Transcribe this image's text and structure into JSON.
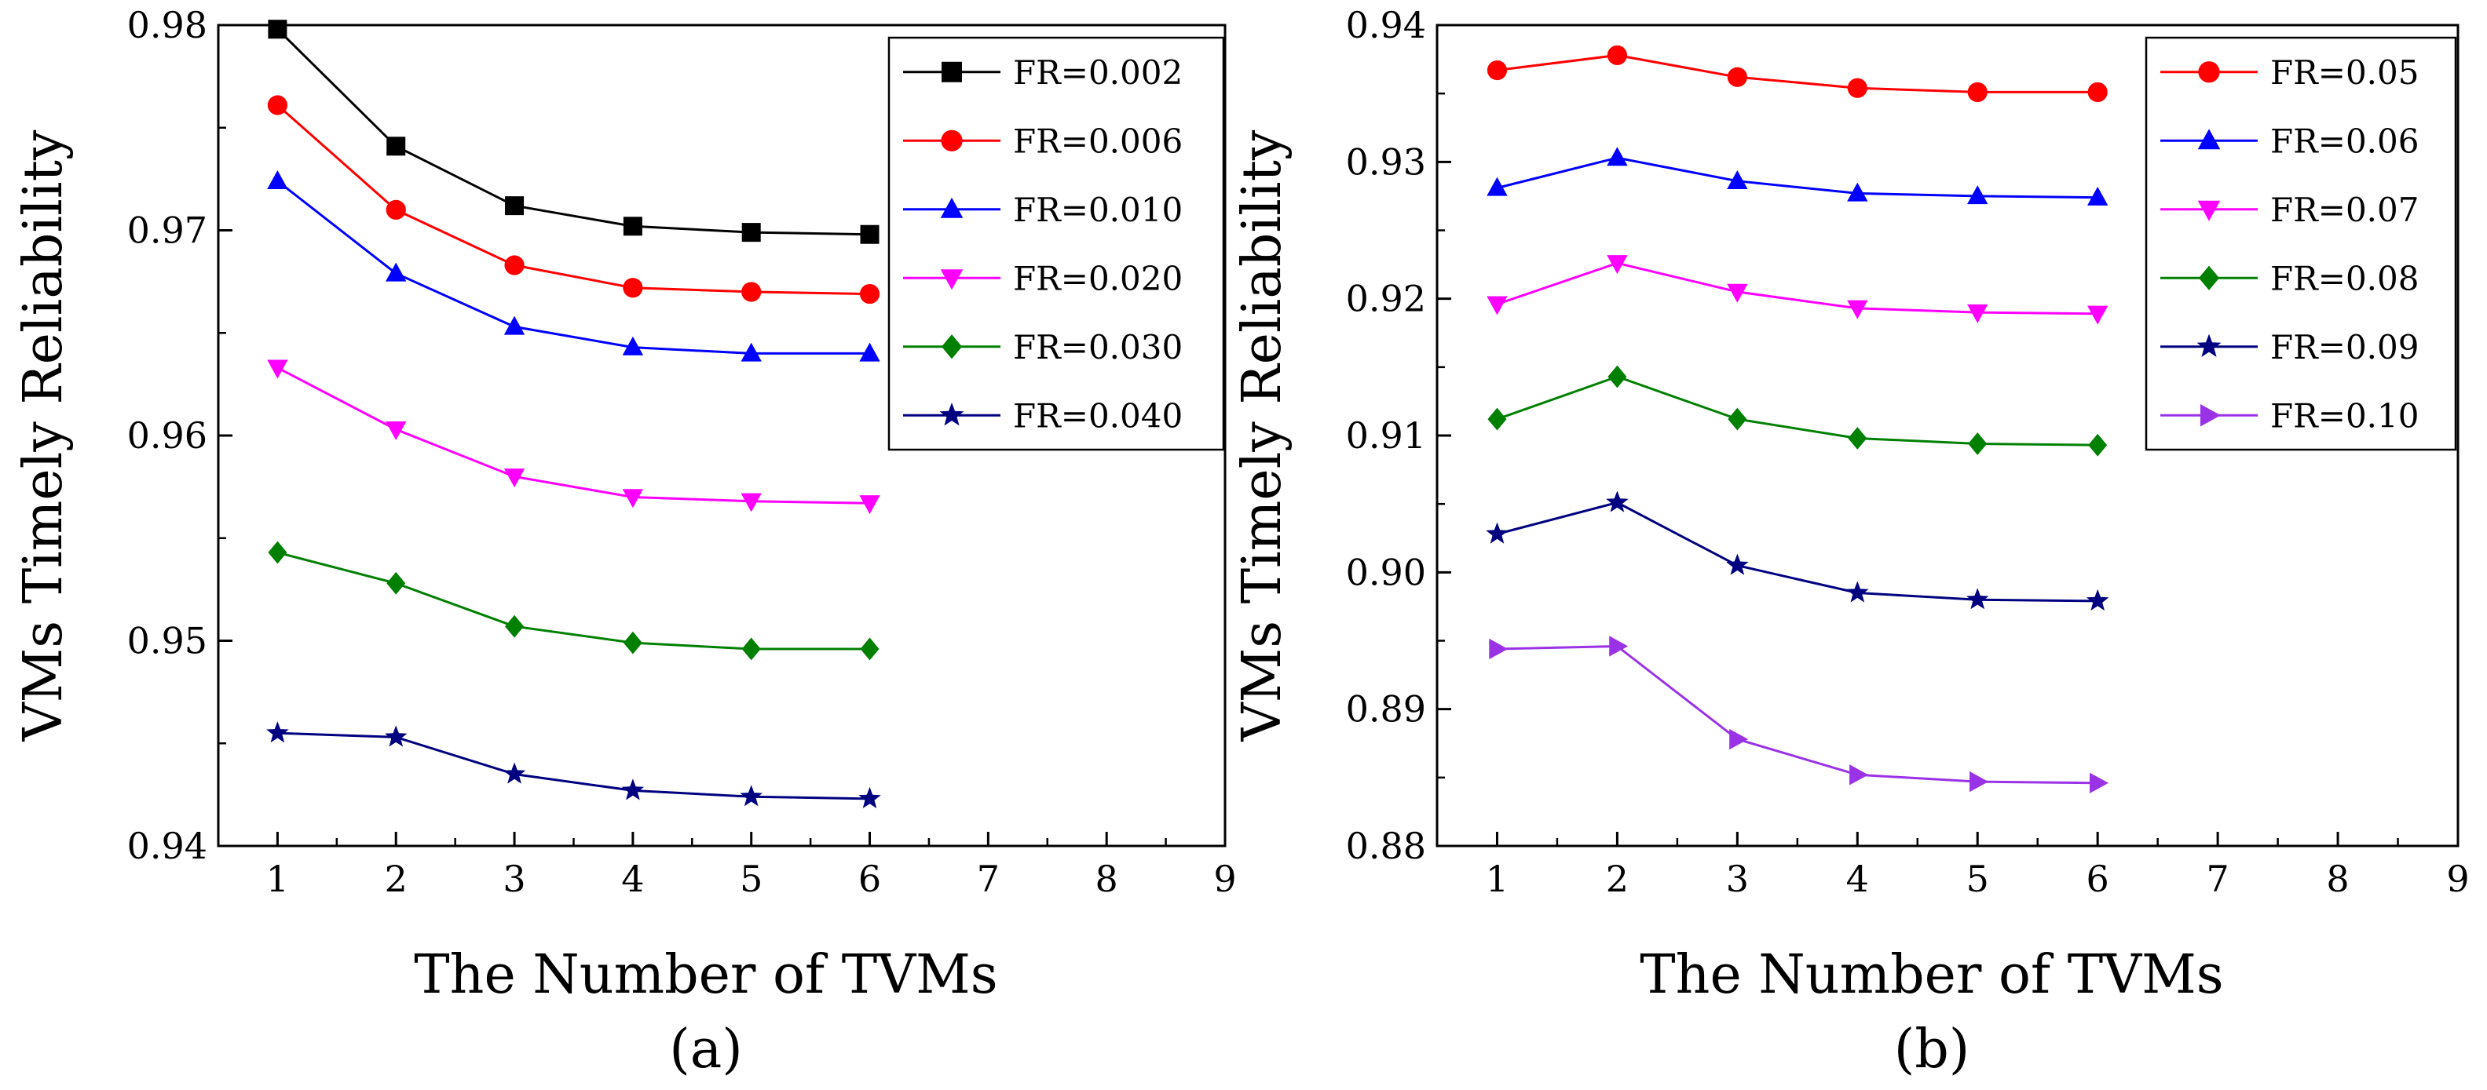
{
  "chart_data": [
    {
      "type": "line",
      "panel_label": "(a)",
      "xlabel": "The Number of TVMs",
      "ylabel": "VMs Timely Reliability",
      "xlim": [
        0.5,
        9
      ],
      "ylim": [
        0.94,
        0.98
      ],
      "xticks": [
        1,
        2,
        3,
        4,
        5,
        6,
        7,
        8,
        9
      ],
      "yticks": [
        0.94,
        0.95,
        0.96,
        0.97,
        0.98
      ],
      "ytick_labels": [
        "0.94",
        "0.95",
        "0.96",
        "0.97",
        "0.98"
      ],
      "legend_position": "top-right",
      "x": [
        1,
        2,
        3,
        4,
        5,
        6
      ],
      "series": [
        {
          "name": "FR=0.002",
          "color": "#000000",
          "marker": "square",
          "values": [
            0.9798,
            0.9741,
            0.9712,
            0.9702,
            0.9699,
            0.9698
          ]
        },
        {
          "name": "FR=0.006",
          "color": "#ff0000",
          "marker": "circle",
          "values": [
            0.9761,
            0.971,
            0.9683,
            0.9672,
            0.967,
            0.9669
          ]
        },
        {
          "name": "FR=0.010",
          "color": "#0000ff",
          "marker": "triangle-up",
          "values": [
            0.9724,
            0.9679,
            0.9653,
            0.9643,
            0.964,
            0.964
          ]
        },
        {
          "name": "FR=0.020",
          "color": "#ff00ff",
          "marker": "triangle-down",
          "values": [
            0.9633,
            0.9603,
            0.958,
            0.957,
            0.9568,
            0.9567
          ]
        },
        {
          "name": "FR=0.030",
          "color": "#008000",
          "marker": "diamond",
          "values": [
            0.9543,
            0.9528,
            0.9507,
            0.9499,
            0.9496,
            0.9496
          ]
        },
        {
          "name": "FR=0.040",
          "color": "#000080",
          "marker": "star",
          "values": [
            0.9455,
            0.9453,
            0.9435,
            0.9427,
            0.9424,
            0.9423
          ]
        }
      ]
    },
    {
      "type": "line",
      "panel_label": "(b)",
      "xlabel": "The Number of TVMs",
      "ylabel": "VMs Timely Reliability",
      "xlim": [
        0.5,
        9
      ],
      "ylim": [
        0.88,
        0.94
      ],
      "xticks": [
        1,
        2,
        3,
        4,
        5,
        6,
        7,
        8,
        9
      ],
      "yticks": [
        0.88,
        0.89,
        0.9,
        0.91,
        0.92,
        0.93,
        0.94
      ],
      "ytick_labels": [
        "0.88",
        "0.89",
        "0.90",
        "0.91",
        "0.92",
        "0.93",
        "0.94"
      ],
      "legend_position": "top-right",
      "x": [
        1,
        2,
        3,
        4,
        5,
        6
      ],
      "series": [
        {
          "name": "FR=0.05",
          "color": "#ff0000",
          "marker": "circle",
          "values": [
            0.9367,
            0.9378,
            0.9362,
            0.9354,
            0.9351,
            0.9351
          ]
        },
        {
          "name": "FR=0.06",
          "color": "#0000ff",
          "marker": "triangle-up",
          "values": [
            0.9281,
            0.9303,
            0.9286,
            0.9277,
            0.9275,
            0.9274
          ]
        },
        {
          "name": "FR=0.07",
          "color": "#ff00ff",
          "marker": "triangle-down",
          "values": [
            0.9196,
            0.9226,
            0.9205,
            0.9193,
            0.919,
            0.9189
          ]
        },
        {
          "name": "FR=0.08",
          "color": "#008000",
          "marker": "diamond",
          "values": [
            0.9112,
            0.9143,
            0.9112,
            0.9098,
            0.9094,
            0.9093
          ]
        },
        {
          "name": "FR=0.09",
          "color": "#000080",
          "marker": "star",
          "values": [
            0.9028,
            0.9051,
            0.9005,
            0.8985,
            0.898,
            0.8979
          ]
        },
        {
          "name": "FR=0.10",
          "color": "#9a32e6",
          "marker": "triangle-right",
          "values": [
            0.8944,
            0.8946,
            0.8878,
            0.8852,
            0.8847,
            0.8846
          ]
        }
      ]
    }
  ]
}
